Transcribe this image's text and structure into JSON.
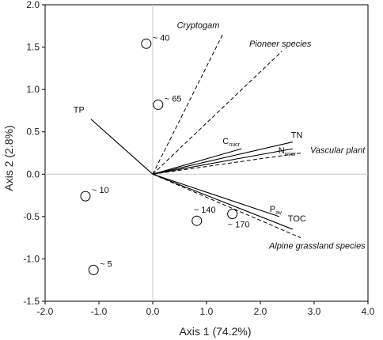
{
  "chart_data": {
    "type": "scatter",
    "subtype": "biplot",
    "xlabel": "Axis 1 (74.2%)",
    "ylabel": "Axis 2 (2.8%)",
    "xlim": [
      -2.0,
      4.0
    ],
    "ylim": [
      -1.5,
      2.0
    ],
    "xticks": [
      "-2.0",
      "-1.0",
      "0.0",
      "1.0",
      "2.0",
      "3.0",
      "4.0"
    ],
    "yticks": [
      "-1.5",
      "-1.0",
      "-0.5",
      "0.0",
      "0.5",
      "1.0",
      "1.5",
      "2.0"
    ],
    "xtick_values": [
      -2,
      -1,
      0,
      1,
      2,
      3,
      4
    ],
    "ytick_values": [
      -1.5,
      -1,
      -0.5,
      0,
      0.5,
      1,
      1.5,
      2
    ],
    "zero_lines": true,
    "points": [
      {
        "label": "~ 40",
        "x": -0.12,
        "y": 1.54
      },
      {
        "label": "~ 65",
        "x": 0.1,
        "y": 0.82
      },
      {
        "label": "~ 10",
        "x": -1.25,
        "y": -0.26
      },
      {
        "label": "~ 5",
        "x": -1.1,
        "y": -1.13
      },
      {
        "label": "~ 140",
        "x": 0.82,
        "y": -0.55
      },
      {
        "label": "~ 170",
        "x": 1.48,
        "y": -0.47
      }
    ],
    "vectors_solid": [
      {
        "name": "TP",
        "sub": "",
        "x": -1.15,
        "y": 0.65
      },
      {
        "name": "TN",
        "sub": "",
        "x": 2.6,
        "y": 0.38
      },
      {
        "name": "C",
        "sub": "micr",
        "x": 1.65,
        "y": 0.3
      },
      {
        "name": "N",
        "sub": "micr",
        "x": 2.6,
        "y": 0.3
      },
      {
        "name": "P",
        "sub": "av",
        "x": 2.35,
        "y": -0.5
      },
      {
        "name": "TOC",
        "sub": "",
        "x": 2.6,
        "y": -0.65
      }
    ],
    "vectors_dashed": [
      {
        "name": "Cryptogam",
        "x": 1.3,
        "y": 1.65
      },
      {
        "name": "Pioneer species",
        "x": 2.4,
        "y": 1.45
      },
      {
        "name": "Vascular plant",
        "x": 2.75,
        "y": 0.25
      },
      {
        "name": "Alpine grassland species",
        "x": 2.75,
        "y": -0.75
      }
    ]
  }
}
